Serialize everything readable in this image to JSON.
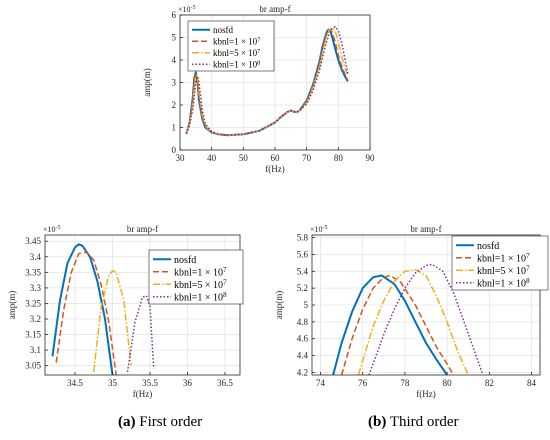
{
  "captions": {
    "a_tag": "(a)",
    "a_text": "First order",
    "b_tag": "(b)",
    "b_text": "Third order"
  },
  "series_style": [
    {
      "color": "#0072bd",
      "dash": "",
      "width": 2.0
    },
    {
      "color": "#d95319",
      "dash": "6,3",
      "width": 1.5
    },
    {
      "color": "#edb120",
      "dash": "7,2,1.5,2",
      "width": 1.5
    },
    {
      "color": "#7e2f8e",
      "dash": "1.5,2",
      "width": 1.5
    }
  ],
  "legend_labels": [
    "nosfd",
    "kbnl=1 × 10⁷",
    "kbnl=5 × 10⁷",
    "kbnl=1 × 10⁸"
  ],
  "chart_data": [
    {
      "id": "top",
      "type": "line",
      "title": "br amp-f",
      "xlabel": "f(Hz)",
      "ylabel": "amp(m)",
      "exponent_label": "×10⁻⁵",
      "xlim": [
        30,
        90
      ],
      "ylim": [
        0,
        6
      ],
      "xticks": [
        30,
        40,
        50,
        60,
        70,
        80,
        90
      ],
      "yticks": [
        0,
        1,
        2,
        3,
        4,
        5,
        6
      ],
      "grid": true,
      "legend_position": "top-left",
      "series": [
        {
          "name": "nosfd",
          "x": [
            32,
            33,
            34,
            34.5,
            35,
            35.5,
            36,
            37,
            38,
            40,
            42,
            45,
            50,
            55,
            60,
            62,
            64,
            65,
            66,
            67,
            68,
            70,
            72,
            74,
            75,
            76,
            76.5,
            77,
            77.5,
            78,
            79,
            80,
            81,
            82,
            83
          ],
          "y": [
            0.72,
            1.2,
            2.3,
            3.2,
            3.45,
            3.1,
            2.2,
            1.4,
            1.0,
            0.78,
            0.7,
            0.66,
            0.7,
            0.85,
            1.22,
            1.48,
            1.7,
            1.75,
            1.7,
            1.68,
            1.8,
            2.2,
            2.9,
            3.9,
            4.6,
            5.1,
            5.3,
            5.35,
            5.28,
            5.05,
            4.5,
            4.0,
            3.6,
            3.3,
            3.05
          ]
        },
        {
          "name": "kbnl=1 × 10⁷",
          "x": [
            32,
            33,
            34,
            34.5,
            35,
            35.5,
            36,
            37,
            38,
            40,
            42,
            45,
            50,
            55,
            60,
            62,
            64,
            65,
            66,
            67,
            68,
            70,
            72,
            74,
            75,
            76,
            77,
            77.5,
            78,
            79,
            80,
            81,
            82,
            83
          ],
          "y": [
            0.72,
            1.18,
            2.2,
            3.1,
            3.42,
            3.15,
            2.3,
            1.45,
            1.02,
            0.79,
            0.7,
            0.66,
            0.7,
            0.85,
            1.22,
            1.48,
            1.7,
            1.75,
            1.7,
            1.68,
            1.8,
            2.18,
            2.85,
            3.8,
            4.5,
            5.05,
            5.33,
            5.35,
            5.25,
            4.8,
            4.2,
            3.75,
            3.4,
            3.1
          ]
        },
        {
          "name": "kbnl=5 × 10⁷",
          "x": [
            32,
            33,
            34,
            34.5,
            35,
            35.5,
            36,
            37,
            38,
            40,
            42,
            45,
            50,
            55,
            60,
            62,
            64,
            65,
            66,
            67,
            68,
            70,
            72,
            74,
            75,
            76,
            77,
            78,
            79,
            80,
            81,
            82,
            83
          ],
          "y": [
            0.72,
            1.15,
            2.0,
            2.8,
            3.25,
            3.35,
            2.6,
            1.6,
            1.08,
            0.8,
            0.7,
            0.66,
            0.7,
            0.85,
            1.22,
            1.48,
            1.7,
            1.75,
            1.7,
            1.68,
            1.78,
            2.1,
            2.75,
            3.65,
            4.3,
            4.9,
            5.3,
            5.43,
            5.3,
            4.8,
            4.2,
            3.7,
            3.3
          ]
        },
        {
          "name": "kbnl=1 × 10⁸",
          "x": [
            32,
            33,
            34,
            35,
            35.5,
            36,
            37,
            38,
            40,
            42,
            45,
            50,
            55,
            60,
            62,
            64,
            65,
            66,
            67,
            68,
            70,
            72,
            74,
            75,
            76,
            77,
            78,
            79,
            80,
            81,
            82,
            83
          ],
          "y": [
            0.72,
            1.1,
            1.8,
            3.0,
            3.27,
            3.0,
            1.8,
            1.15,
            0.82,
            0.71,
            0.66,
            0.7,
            0.85,
            1.22,
            1.48,
            1.7,
            1.75,
            1.7,
            1.68,
            1.77,
            2.05,
            2.65,
            3.5,
            4.1,
            4.7,
            5.1,
            5.4,
            5.48,
            5.3,
            4.8,
            4.1,
            3.4
          ]
        }
      ]
    },
    {
      "id": "first",
      "type": "line",
      "title": "br amp-f",
      "xlabel": "f(Hz)",
      "ylabel": "amp(m)",
      "exponent_label": "×10⁻⁵",
      "xlim": [
        34.1,
        36.7
      ],
      "ylim": [
        3.02,
        3.47
      ],
      "xticks": [
        34.5,
        35,
        35.5,
        36,
        36.5
      ],
      "yticks": [
        3.05,
        3.1,
        3.15,
        3.2,
        3.25,
        3.3,
        3.35,
        3.4,
        3.45
      ],
      "grid": true,
      "legend_position": "top-right",
      "series": [
        {
          "name": "nosfd",
          "x": [
            34.2,
            34.3,
            34.4,
            34.5,
            34.55,
            34.6,
            34.7,
            34.8,
            34.9,
            35.0
          ],
          "y": [
            3.08,
            3.26,
            3.38,
            3.43,
            3.44,
            3.435,
            3.4,
            3.32,
            3.2,
            3.02
          ]
        },
        {
          "name": "kbnl=1 × 10⁷",
          "x": [
            34.25,
            34.35,
            34.45,
            34.55,
            34.65,
            34.75,
            34.85,
            34.95,
            35.05
          ],
          "y": [
            3.06,
            3.23,
            3.35,
            3.41,
            3.415,
            3.39,
            3.31,
            3.19,
            3.02
          ]
        },
        {
          "name": "kbnl=5 × 10⁷",
          "x": [
            34.75,
            34.85,
            34.95,
            35.0,
            35.05,
            35.15,
            35.25
          ],
          "y": [
            3.03,
            3.24,
            3.34,
            3.355,
            3.35,
            3.26,
            3.05
          ]
        },
        {
          "name": "kbnl=1 × 10⁸",
          "x": [
            35.2,
            35.3,
            35.4,
            35.45,
            35.5,
            35.55
          ],
          "y": [
            3.03,
            3.19,
            3.27,
            3.275,
            3.24,
            3.04
          ]
        }
      ]
    },
    {
      "id": "third",
      "type": "line",
      "title": "br amp-f",
      "xlabel": "f(Hz)",
      "ylabel": "amp(m)",
      "exponent_label": "×10⁻⁵",
      "xlim": [
        73.6,
        84.4
      ],
      "ylim": [
        4.17,
        5.83
      ],
      "xticks": [
        74,
        76,
        78,
        80,
        82,
        84
      ],
      "yticks": [
        4.2,
        4.4,
        4.6,
        4.8,
        5,
        5.2,
        5.4,
        5.6,
        5.8
      ],
      "grid": true,
      "legend_position": "top-right",
      "series": [
        {
          "name": "nosfd",
          "x": [
            74.6,
            75,
            75.5,
            76,
            76.5,
            76.9,
            77.5,
            78,
            78.5,
            79,
            79.5,
            80
          ],
          "y": [
            4.17,
            4.55,
            4.92,
            5.2,
            5.33,
            5.35,
            5.25,
            5.05,
            4.8,
            4.55,
            4.35,
            4.17
          ]
        },
        {
          "name": "kbnl=1 × 10⁷",
          "x": [
            75,
            75.5,
            76,
            76.5,
            77,
            77.3,
            77.8,
            78.5,
            79,
            79.5,
            80,
            80.3
          ],
          "y": [
            4.17,
            4.6,
            4.95,
            5.2,
            5.33,
            5.35,
            5.27,
            5.0,
            4.75,
            4.5,
            4.3,
            4.17
          ]
        },
        {
          "name": "kbnl=5 × 10⁷",
          "x": [
            75.8,
            76.5,
            77,
            77.5,
            78,
            78.5,
            79,
            79.5,
            80,
            80.5,
            81
          ],
          "y": [
            4.17,
            4.75,
            5.05,
            5.28,
            5.4,
            5.42,
            5.35,
            5.1,
            4.8,
            4.45,
            4.17
          ]
        },
        {
          "name": "kbnl=1 × 10⁸",
          "x": [
            76.3,
            77,
            77.5,
            78,
            78.5,
            79,
            79.3,
            79.8,
            80.3,
            80.8,
            81.3,
            81.7
          ],
          "y": [
            4.17,
            4.65,
            4.95,
            5.2,
            5.38,
            5.47,
            5.48,
            5.4,
            5.15,
            4.8,
            4.45,
            4.17
          ]
        }
      ]
    }
  ]
}
